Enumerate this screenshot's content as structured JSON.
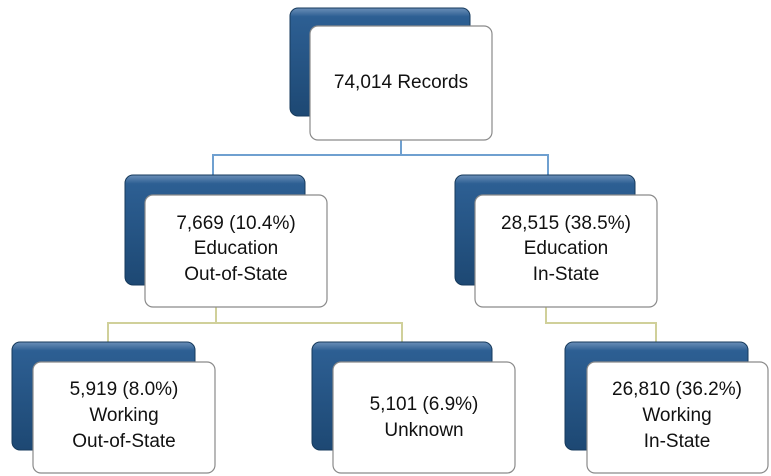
{
  "nodes": [
    {
      "lines": [
        "74,014 Records"
      ]
    },
    {
      "lines": [
        "7,669 (10.4%)",
        "Education",
        "Out-of-State"
      ]
    },
    {
      "lines": [
        "28,515 (38.5%)",
        "Education",
        "In-State"
      ]
    },
    {
      "lines": [
        "5,919 (8.0%)",
        "Working",
        "Out-of-State"
      ]
    },
    {
      "lines": [
        "5,101 (6.9%)",
        "Unknown"
      ]
    },
    {
      "lines": [
        "26,810 (36.2%)",
        "Working",
        "In-State"
      ]
    }
  ]
}
